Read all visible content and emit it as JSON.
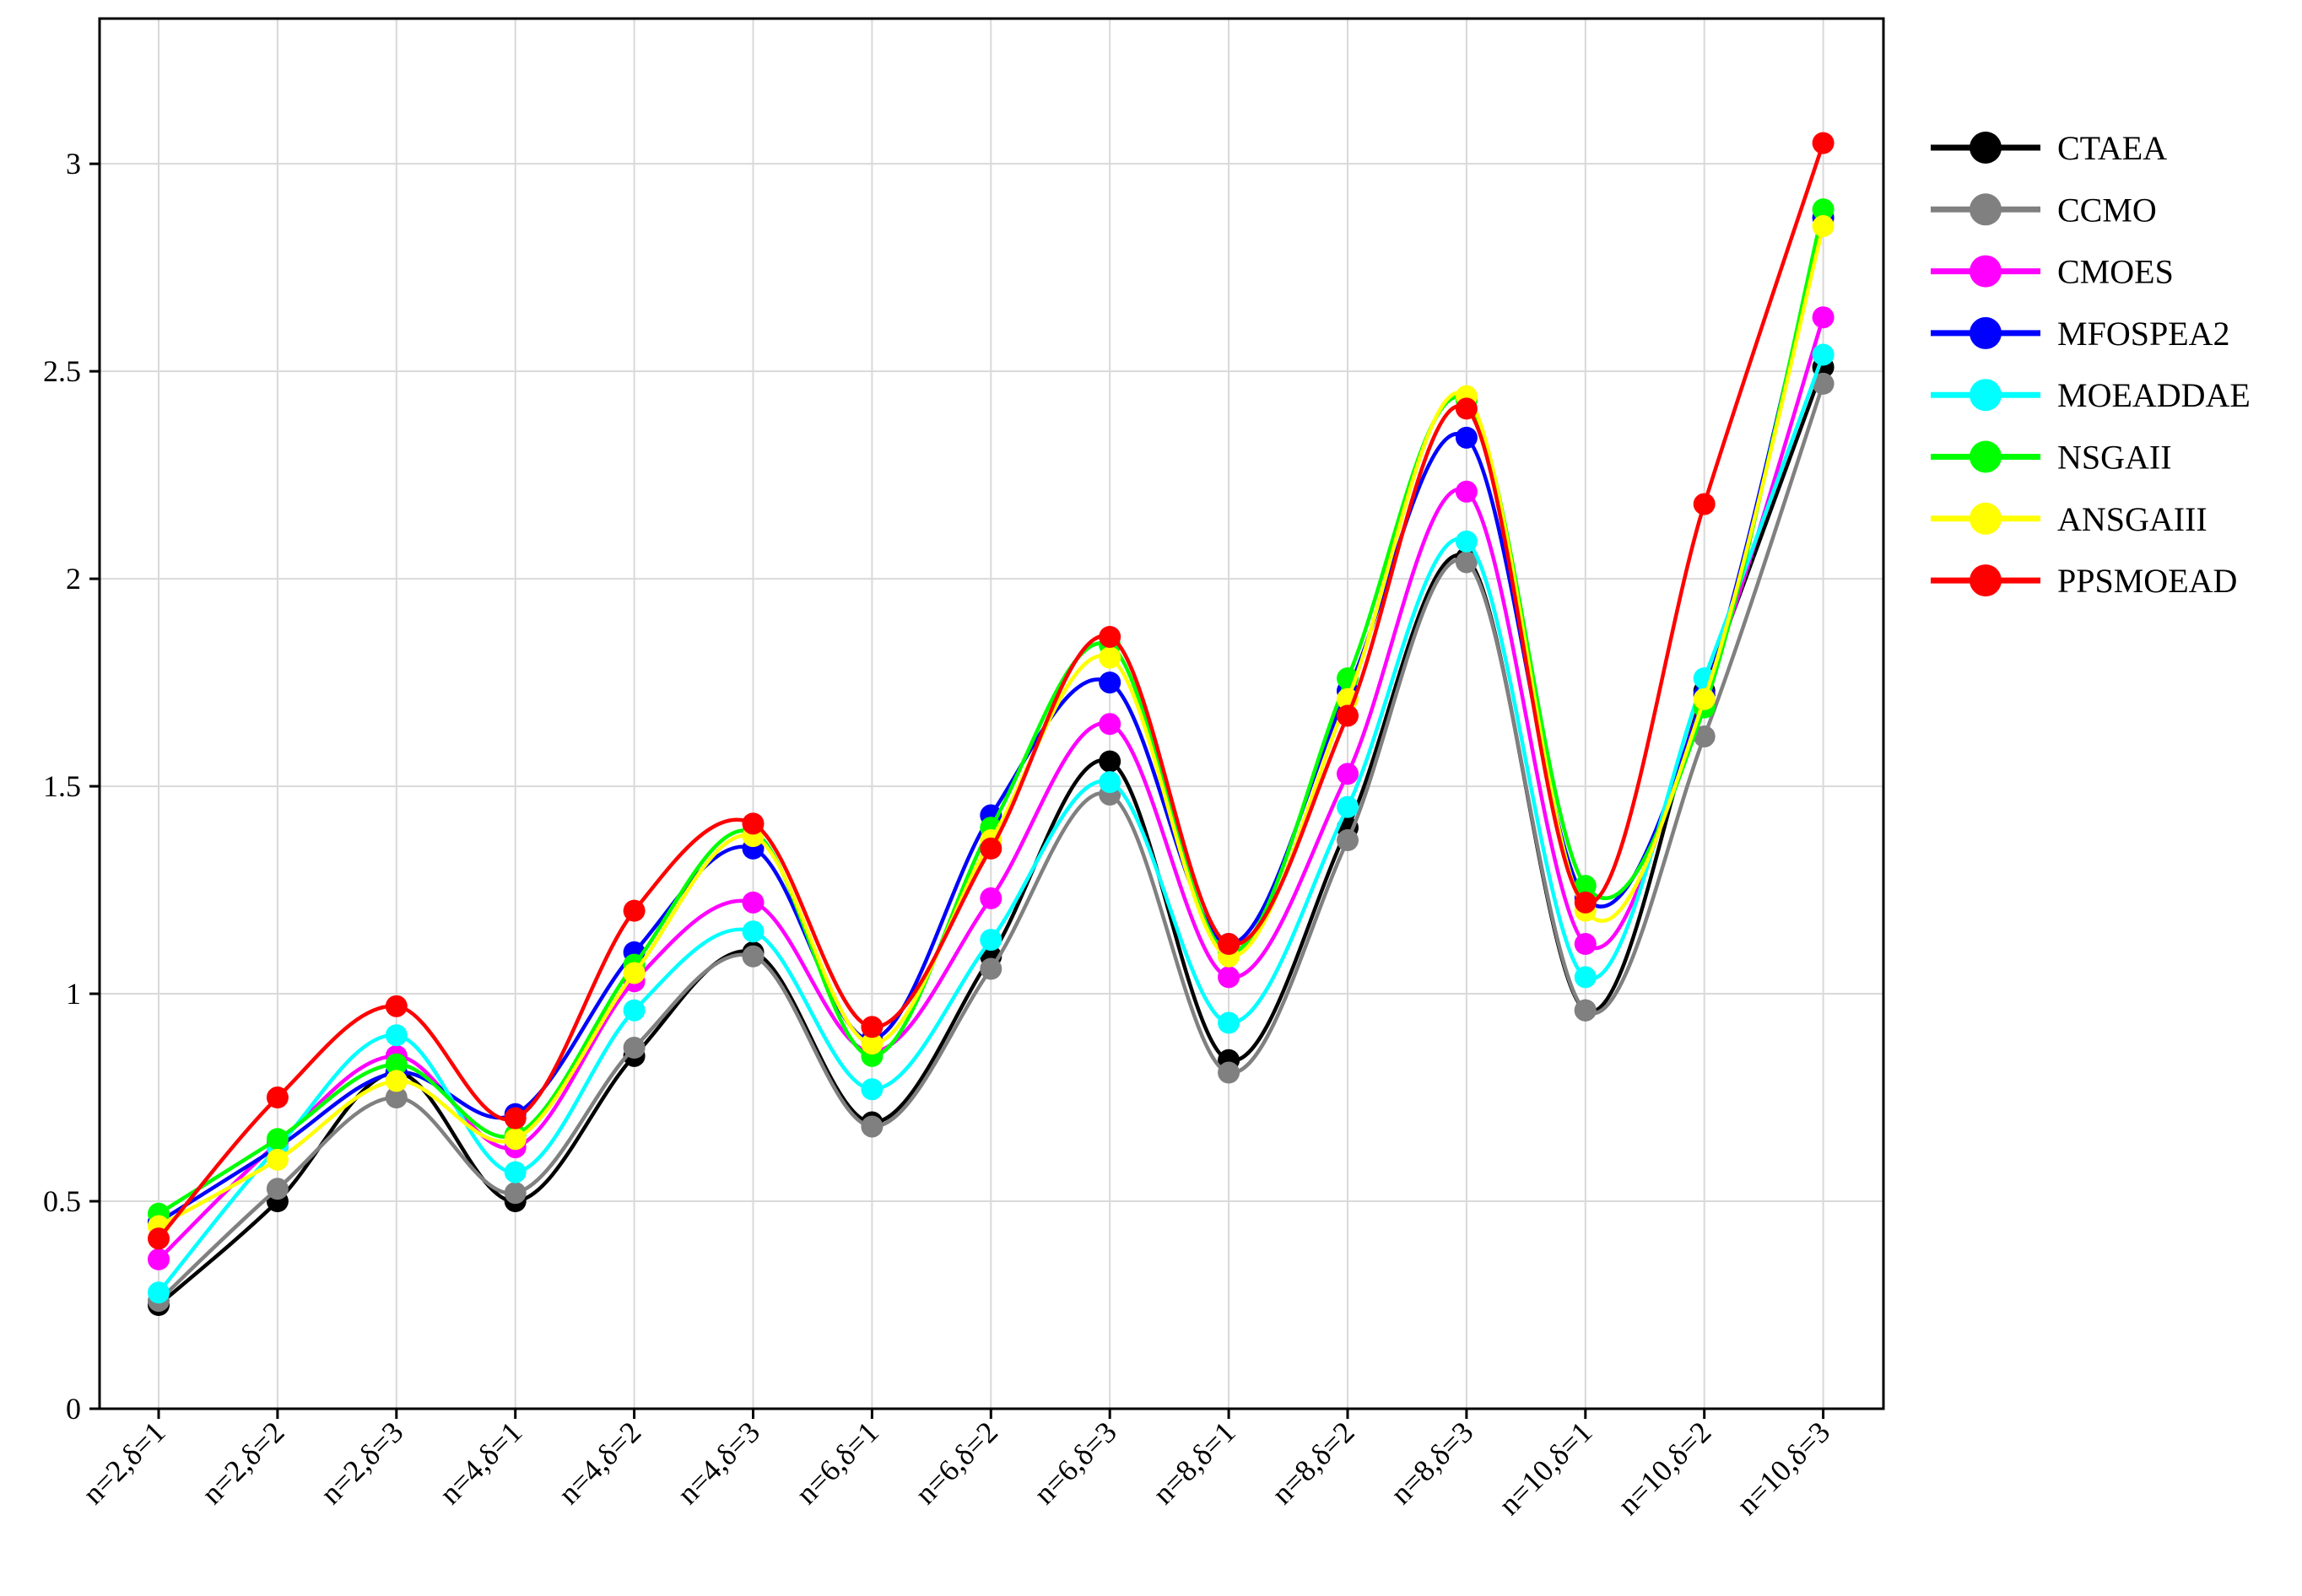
{
  "chart_data": {
    "type": "line",
    "title": "",
    "xlabel": "",
    "ylabel": "",
    "categories": [
      "n=2,δ=1",
      "n=2,δ=2",
      "n=2,δ=3",
      "n=4,δ=1",
      "n=4,δ=2",
      "n=4,δ=3",
      "n=6,δ=1",
      "n=6,δ=2",
      "n=6,δ=3",
      "n=8,δ=1",
      "n=8,δ=2",
      "n=8,δ=3",
      "n=10,δ=1",
      "n=10,δ=2",
      "n=10,δ=3"
    ],
    "ylim": [
      0,
      3.35
    ],
    "yticks": [
      0,
      0.5,
      1,
      1.5,
      2,
      2.5,
      3
    ],
    "ytick_labels": [
      "0",
      "0.5",
      "1",
      "1.5",
      "2",
      "2.5",
      "3"
    ],
    "grid": true,
    "legend_position": "right",
    "series": [
      {
        "name": "CTAEA",
        "color": "#000000",
        "values": [
          0.25,
          0.5,
          0.81,
          0.5,
          0.85,
          1.1,
          0.69,
          1.09,
          1.56,
          0.84,
          1.4,
          2.05,
          0.96,
          1.73,
          2.51
        ]
      },
      {
        "name": "CCMO",
        "color": "#808080",
        "values": [
          0.26,
          0.53,
          0.75,
          0.52,
          0.87,
          1.09,
          0.68,
          1.06,
          1.48,
          0.81,
          1.37,
          2.04,
          0.96,
          1.62,
          2.47
        ]
      },
      {
        "name": "CMOES",
        "color": "#ff00ff",
        "values": [
          0.36,
          0.64,
          0.85,
          0.63,
          1.03,
          1.22,
          0.86,
          1.23,
          1.65,
          1.04,
          1.53,
          2.21,
          1.12,
          1.72,
          2.63
        ]
      },
      {
        "name": "MFOSPEA2",
        "color": "#0000ff",
        "values": [
          0.45,
          0.63,
          0.81,
          0.71,
          1.1,
          1.35,
          0.89,
          1.43,
          1.75,
          1.12,
          1.73,
          2.34,
          1.23,
          1.72,
          2.87
        ]
      },
      {
        "name": "MOEADDAE",
        "color": "#00ffff",
        "values": [
          0.28,
          0.63,
          0.9,
          0.57,
          0.96,
          1.15,
          0.77,
          1.13,
          1.51,
          0.93,
          1.45,
          2.09,
          1.04,
          1.76,
          2.54
        ]
      },
      {
        "name": "NSGAII",
        "color": "#00ff00",
        "values": [
          0.47,
          0.65,
          0.83,
          0.66,
          1.07,
          1.39,
          0.85,
          1.4,
          1.84,
          1.1,
          1.76,
          2.43,
          1.26,
          1.69,
          2.89
        ]
      },
      {
        "name": "ANSGAIII",
        "color": "#ffff00",
        "values": [
          0.44,
          0.6,
          0.79,
          0.65,
          1.05,
          1.38,
          0.88,
          1.37,
          1.81,
          1.09,
          1.71,
          2.44,
          1.2,
          1.71,
          2.85
        ]
      },
      {
        "name": "PPSMOEAD",
        "color": "#ff0000",
        "values": [
          0.41,
          0.75,
          0.97,
          0.7,
          1.2,
          1.41,
          0.92,
          1.35,
          1.86,
          1.12,
          1.67,
          2.41,
          1.22,
          2.18,
          3.05
        ]
      }
    ]
  }
}
